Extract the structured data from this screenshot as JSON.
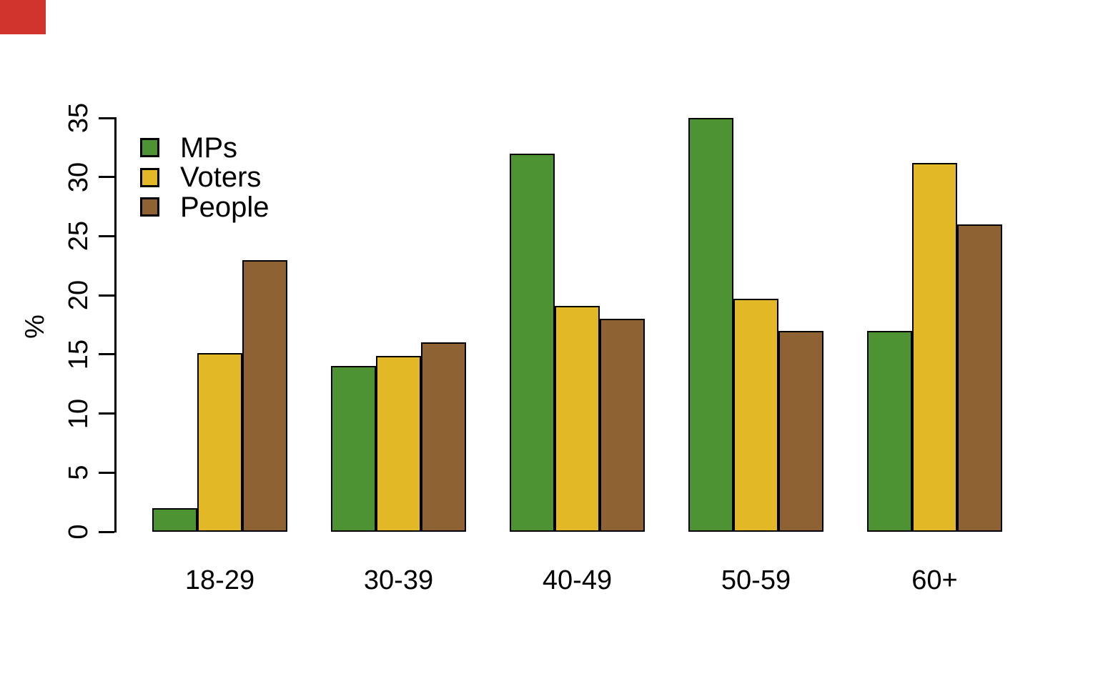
{
  "marker": {
    "color": "#d0342c"
  },
  "chart_data": {
    "type": "bar",
    "title": "",
    "xlabel": "",
    "ylabel": "%",
    "categories": [
      "18-29",
      "30-39",
      "40-49",
      "50-59",
      "60+"
    ],
    "series": [
      {
        "name": "MPs",
        "color": "#4d9233",
        "values": [
          2,
          14,
          32,
          35,
          17
        ]
      },
      {
        "name": "Voters",
        "color": "#e3b827",
        "values": [
          15.1,
          14.9,
          19.1,
          19.7,
          31.2
        ]
      },
      {
        "name": "People",
        "color": "#8f6233",
        "values": [
          23,
          16,
          18,
          17,
          26
        ]
      }
    ],
    "ylim": [
      0,
      35
    ],
    "yticks": [
      0,
      5,
      10,
      15,
      20,
      25,
      30,
      35
    ],
    "grid": false,
    "legend_position": "top-left",
    "bar_border_color": "#000000",
    "axis_color": "#000000",
    "background": "#ffffff"
  }
}
